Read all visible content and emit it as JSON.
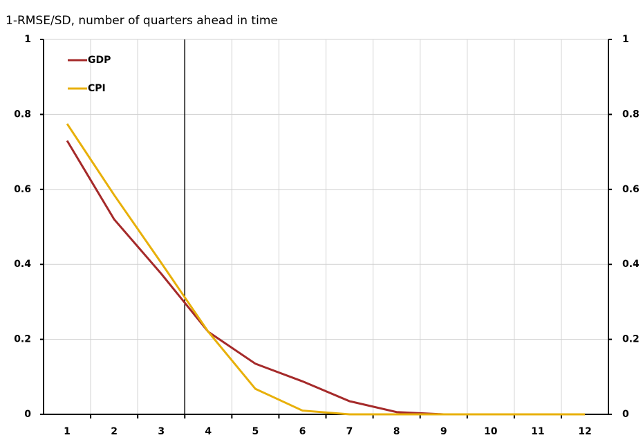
{
  "chart_data": {
    "type": "line",
    "title": "1-RMSE/SD, number of quarters ahead in time",
    "x": [
      1,
      2,
      3,
      4,
      5,
      6,
      7,
      8,
      9,
      10,
      11,
      12
    ],
    "xlim": [
      0.5,
      12.5
    ],
    "series": [
      {
        "name": "GDP",
        "color": "#a52a2a",
        "values": [
          0.73,
          0.52,
          0.375,
          0.22,
          0.135,
          0.088,
          0.035,
          0.006,
          0,
          0,
          0,
          0
        ]
      },
      {
        "name": "CPI",
        "color": "#e8b00a",
        "values": [
          0.775,
          0.585,
          0.404,
          0.22,
          0.068,
          0.01,
          0,
          0,
          0,
          0,
          0,
          0
        ]
      }
    ],
    "ylim": [
      0,
      1
    ],
    "yticks": [
      0,
      0.2,
      0.4,
      0.6,
      0.8,
      1
    ],
    "y2lim": [
      0,
      1
    ],
    "y2ticks": [
      0,
      0.2,
      0.4,
      0.6,
      0.8,
      1
    ],
    "vertical_line": 3.5,
    "grid": true,
    "legend": "top-left"
  }
}
